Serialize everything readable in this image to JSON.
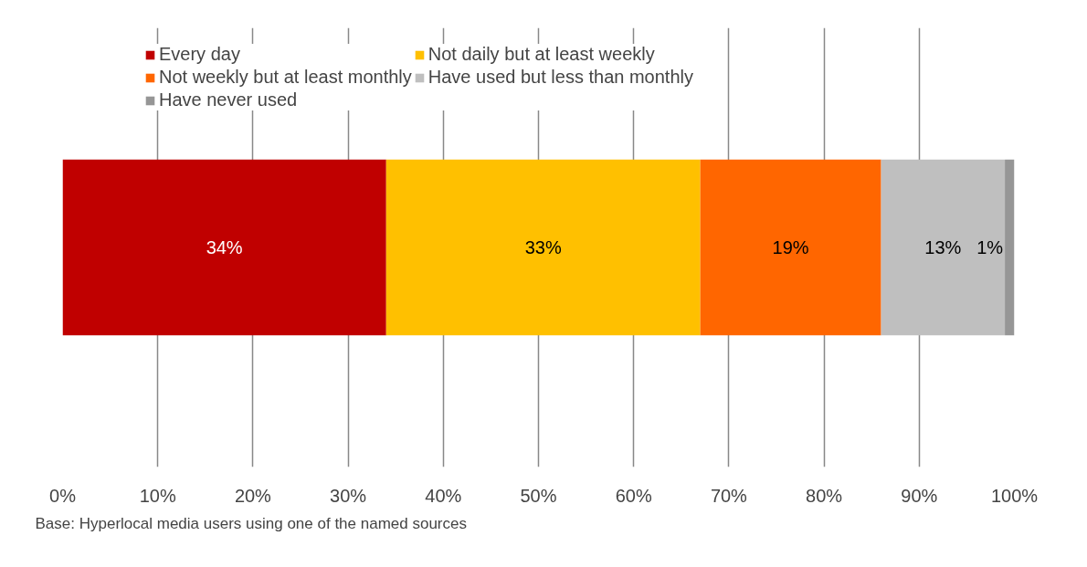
{
  "chart_data": {
    "type": "bar",
    "orientation": "horizontal",
    "stacked": true,
    "categories": [
      null
    ],
    "series": [
      {
        "name": "Every day",
        "color": "#c00000",
        "values": [
          34
        ],
        "value_labels": [
          "34%"
        ]
      },
      {
        "name": "Not daily but at least weekly",
        "color": "#ffc000",
        "values": [
          33
        ],
        "value_labels": [
          "33%"
        ]
      },
      {
        "name": "Not weekly but at least monthly",
        "color": "#ff6600",
        "values": [
          19
        ],
        "value_labels": [
          "19%"
        ]
      },
      {
        "name": "Have used but less than monthly",
        "color": "#bfbfbf",
        "values": [
          13
        ],
        "value_labels": [
          "13%"
        ]
      },
      {
        "name": "Have never used",
        "color": "#969696",
        "values": [
          1
        ],
        "value_labels": [
          "1%"
        ]
      }
    ],
    "xlim": [
      0,
      100
    ],
    "xticks": [
      {
        "value": 0,
        "label": "0%"
      },
      {
        "value": 10,
        "label": "10%"
      },
      {
        "value": 20,
        "label": "20%"
      },
      {
        "value": 30,
        "label": "30%"
      },
      {
        "value": 40,
        "label": "40%"
      },
      {
        "value": 50,
        "label": "50%"
      },
      {
        "value": 60,
        "label": "60%"
      },
      {
        "value": 70,
        "label": "70%"
      },
      {
        "value": 80,
        "label": "80%"
      },
      {
        "value": 90,
        "label": "90%"
      },
      {
        "value": 100,
        "label": "100%"
      }
    ],
    "grid": "x",
    "legend": "top",
    "annotations": [
      "Base: Hyperlocal media users using one of the named sources"
    ]
  }
}
